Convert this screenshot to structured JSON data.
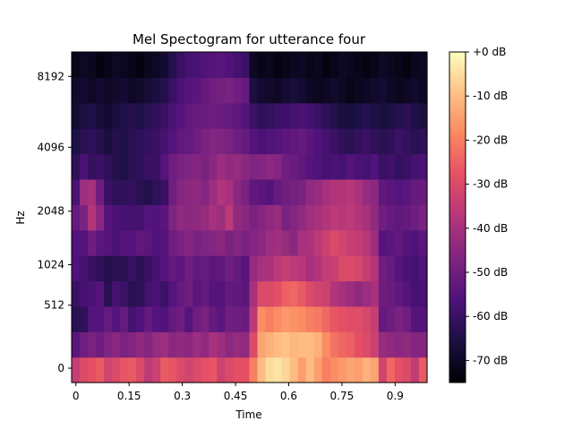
{
  "chart_data": {
    "type": "heatmap",
    "title": "Mel Spectogram for utterance four",
    "xlabel": "Time",
    "ylabel": "Hz",
    "x_ticks": [
      0,
      0.15,
      0.3,
      0.45,
      0.6,
      0.75,
      0.9
    ],
    "x_tick_labels": [
      "0",
      "0.15",
      "0.3",
      "0.45",
      "0.6",
      "0.75",
      "0.9"
    ],
    "xlim": [
      -0.012,
      0.99
    ],
    "y_scale": "mel",
    "y_ticks": [
      0,
      512,
      1024,
      2048,
      4096,
      8192
    ],
    "y_tick_labels": [
      "0",
      "512",
      "1024",
      "2048",
      "4096",
      "8192"
    ],
    "colorbar": {
      "colormap": "magma",
      "range_db": [
        -75,
        0
      ],
      "ticks": [
        0,
        -10,
        -20,
        -30,
        -40,
        -50,
        -60,
        -70
      ],
      "tick_labels": [
        "+0 dB",
        "-10 dB",
        "-20 dB",
        "-30 dB",
        "-40 dB",
        "-50 dB",
        "-60 dB",
        "-70 dB"
      ]
    },
    "grid": false,
    "n_time_frames": 44,
    "n_mel_bands": 13,
    "frame_duration_s": 0.0227,
    "values_db": [
      [
        -34,
        -30,
        -28,
        -26,
        -32,
        -30,
        -27,
        -26,
        -30,
        -36,
        -33,
        -26,
        -27,
        -30,
        -32,
        -30,
        -28,
        -27,
        -33,
        -30,
        -28,
        -28,
        -20,
        -10,
        -5,
        -4,
        -6,
        -10,
        -15,
        -10,
        -15,
        -20,
        -18,
        -16,
        -14,
        -15,
        -12,
        -14,
        -32,
        -24,
        -28,
        -30,
        -35,
        -26
      ],
      [
        -54,
        -50,
        -48,
        -50,
        -47,
        -45,
        -48,
        -46,
        -44,
        -46,
        -43,
        -42,
        -45,
        -44,
        -45,
        -42,
        -44,
        -40,
        -42,
        -45,
        -43,
        -44,
        -30,
        -14,
        -12,
        -10,
        -9,
        -11,
        -10,
        -10,
        -12,
        -18,
        -22,
        -24,
        -25,
        -28,
        -30,
        -33,
        -43,
        -44,
        -45,
        -44,
        -46,
        -46
      ],
      [
        -63,
        -62,
        -55,
        -55,
        -52,
        -55,
        -52,
        -58,
        -56,
        -52,
        -55,
        -56,
        -52,
        -50,
        -55,
        -50,
        -48,
        -52,
        -54,
        -50,
        -50,
        -51,
        -36,
        -18,
        -20,
        -18,
        -16,
        -17,
        -18,
        -20,
        -21,
        -24,
        -27,
        -28,
        -29,
        -29,
        -31,
        -34,
        -52,
        -50,
        -48,
        -50,
        -55,
        -55
      ],
      [
        -60,
        -58,
        -57,
        -55,
        -63,
        -58,
        -60,
        -63,
        -62,
        -58,
        -57,
        -60,
        -55,
        -52,
        -50,
        -54,
        -52,
        -55,
        -55,
        -52,
        -53,
        -54,
        -40,
        -30,
        -30,
        -28,
        -25,
        -24,
        -26,
        -30,
        -32,
        -33,
        -38,
        -40,
        -42,
        -44,
        -42,
        -40,
        -50,
        -51,
        -53,
        -55,
        -58,
        -57
      ],
      [
        -56,
        -58,
        -60,
        -62,
        -64,
        -63,
        -63,
        -60,
        -63,
        -60,
        -58,
        -55,
        -52,
        -54,
        -50,
        -53,
        -52,
        -54,
        -53,
        -50,
        -52,
        -55,
        -43,
        -40,
        -39,
        -36,
        -34,
        -36,
        -37,
        -40,
        -38,
        -35,
        -34,
        -30,
        -30,
        -31,
        -34,
        -38,
        -50,
        -52,
        -55,
        -57,
        -58,
        -56
      ],
      [
        -56,
        -55,
        -50,
        -54,
        -55,
        -57,
        -55,
        -55,
        -53,
        -54,
        -56,
        -55,
        -50,
        -48,
        -46,
        -48,
        -47,
        -46,
        -45,
        -48,
        -46,
        -48,
        -46,
        -45,
        -42,
        -41,
        -43,
        -45,
        -40,
        -39,
        -36,
        -33,
        -30,
        -32,
        -34,
        -35,
        -37,
        -42,
        -55,
        -54,
        -53,
        -55,
        -56,
        -54
      ],
      [
        -52,
        -48,
        -38,
        -45,
        -55,
        -57,
        -58,
        -58,
        -58,
        -55,
        -56,
        -54,
        -47,
        -44,
        -45,
        -44,
        -43,
        -40,
        -42,
        -36,
        -44,
        -45,
        -48,
        -46,
        -44,
        -43,
        -48,
        -46,
        -44,
        -41,
        -40,
        -38,
        -36,
        -37,
        -36,
        -38,
        -40,
        -44,
        -50,
        -52,
        -53,
        -52,
        -50,
        -48
      ],
      [
        -57,
        -42,
        -40,
        -50,
        -60,
        -62,
        -62,
        -61,
        -63,
        -64,
        -62,
        -60,
        -50,
        -46,
        -45,
        -44,
        -46,
        -42,
        -38,
        -40,
        -45,
        -48,
        -53,
        -54,
        -55,
        -52,
        -50,
        -49,
        -48,
        -44,
        -43,
        -40,
        -38,
        -38,
        -37,
        -39,
        -43,
        -45,
        -53,
        -54,
        -55,
        -54,
        -52,
        -51
      ],
      [
        -62,
        -57,
        -61,
        -60,
        -62,
        -64,
        -65,
        -63,
        -62,
        -60,
        -60,
        -55,
        -50,
        -48,
        -47,
        -46,
        -48,
        -45,
        -42,
        -44,
        -43,
        -45,
        -47,
        -46,
        -45,
        -46,
        -50,
        -51,
        -53,
        -55,
        -56,
        -58,
        -57,
        -58,
        -55,
        -57,
        -58,
        -56,
        -60,
        -59,
        -61,
        -60,
        -58,
        -57
      ],
      [
        -65,
        -63,
        -62,
        -64,
        -66,
        -64,
        -65,
        -63,
        -62,
        -61,
        -60,
        -58,
        -55,
        -53,
        -52,
        -50,
        -48,
        -46,
        -47,
        -48,
        -50,
        -52,
        -55,
        -57,
        -56,
        -55,
        -54,
        -53,
        -52,
        -54,
        -56,
        -58,
        -60,
        -62,
        -63,
        -61,
        -60,
        -62,
        -63,
        -62,
        -60,
        -61,
        -63,
        -62
      ],
      [
        -68,
        -66,
        -65,
        -67,
        -68,
        -66,
        -65,
        -64,
        -65,
        -63,
        -62,
        -60,
        -57,
        -55,
        -53,
        -52,
        -51,
        -50,
        -51,
        -52,
        -53,
        -55,
        -60,
        -62,
        -61,
        -60,
        -59,
        -58,
        -57,
        -58,
        -60,
        -62,
        -64,
        -66,
        -66,
        -65,
        -64,
        -65,
        -66,
        -65,
        -64,
        -63,
        -65,
        -66
      ],
      [
        -69,
        -68,
        -70,
        -68,
        -70,
        -69,
        -68,
        -70,
        -69,
        -67,
        -66,
        -64,
        -60,
        -57,
        -55,
        -54,
        -52,
        -50,
        -49,
        -48,
        -50,
        -52,
        -66,
        -68,
        -69,
        -70,
        -68,
        -67,
        -68,
        -70,
        -71,
        -70,
        -69,
        -70,
        -72,
        -71,
        -70,
        -69,
        -68,
        -70,
        -71,
        -70,
        -69,
        -70
      ],
      [
        -72,
        -70,
        -71,
        -73,
        -72,
        -70,
        -71,
        -72,
        -73,
        -71,
        -70,
        -68,
        -64,
        -60,
        -58,
        -57,
        -56,
        -55,
        -54,
        -56,
        -58,
        -60,
        -70,
        -72,
        -71,
        -73,
        -72,
        -71,
        -70,
        -72,
        -71,
        -73,
        -72,
        -70,
        -71,
        -72,
        -73,
        -72,
        -70,
        -71,
        -72,
        -73,
        -71,
        -70
      ]
    ]
  }
}
